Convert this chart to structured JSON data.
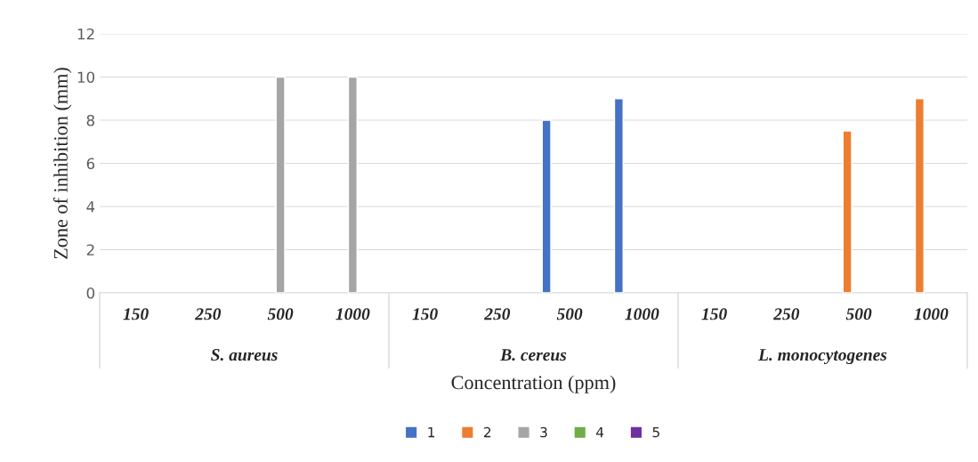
{
  "chart_data": {
    "type": "bar",
    "xlabel": "Concentration (ppm)",
    "ylabel": "Zone of inhibition (mm)",
    "categories": [
      "150",
      "250",
      "500",
      "1000",
      "150",
      "250",
      "500",
      "1000",
      "150",
      "250",
      "500",
      "1000"
    ],
    "annotations": [
      "S. aureus",
      "B. cereus",
      "L. monocytogenes"
    ],
    "series": [
      {
        "name": "1",
        "color": "#4472c4",
        "values": [
          null,
          null,
          null,
          null,
          null,
          null,
          8,
          9,
          null,
          null,
          null,
          null
        ]
      },
      {
        "name": "2",
        "color": "#ed7d31",
        "values": [
          null,
          null,
          null,
          null,
          null,
          null,
          null,
          null,
          null,
          null,
          7.5,
          9
        ]
      },
      {
        "name": "3",
        "color": "#a5a5a5",
        "values": [
          null,
          null,
          10,
          10,
          null,
          null,
          null,
          null,
          null,
          null,
          null,
          null
        ]
      },
      {
        "name": "4",
        "color": "#70ad47",
        "values": [
          null,
          null,
          null,
          null,
          null,
          null,
          null,
          null,
          null,
          null,
          null,
          null
        ]
      },
      {
        "name": "5",
        "color": "#7030a0",
        "values": [
          null,
          null,
          null,
          null,
          null,
          null,
          null,
          null,
          null,
          null,
          null,
          null
        ]
      }
    ],
    "ylim": [
      0,
      12
    ],
    "yticks": [
      0,
      2,
      4,
      6,
      8,
      10,
      12
    ],
    "grid": "y",
    "legend": "bottom"
  }
}
